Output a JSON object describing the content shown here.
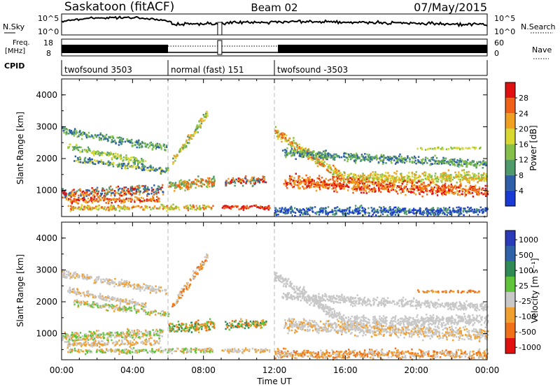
{
  "header": {
    "station": "Saskatoon (fitACF)",
    "beam": "Beam 02",
    "date": "07/May/2015"
  },
  "status_panels": {
    "nsky_label": "N.Sky",
    "nsky_ticks": [
      "10^5",
      "10^0"
    ],
    "nsearch_label": "N.Search",
    "nsearch_ticks": [
      "10^5",
      "10^0"
    ],
    "freq_label_line1": "Freq.",
    "freq_label_line2": "[MHz]",
    "freq_ticks": [
      "18",
      "8"
    ],
    "nave_label": "Nave",
    "nave_ticks": [
      "60",
      "0"
    ],
    "cpid_label": "CPID",
    "cpid_segments": [
      {
        "label": "twofsound 3503",
        "start_h": 0,
        "end_h": 6
      },
      {
        "label": "normal (fast) 151",
        "start_h": 6,
        "end_h": 12
      },
      {
        "label": "twofsound -3503",
        "start_h": 12,
        "end_h": 24
      }
    ]
  },
  "colors": {
    "power_scale": [
      "#1a3ad6",
      "#2f5fa8",
      "#4f9a6a",
      "#84c04a",
      "#d8d830",
      "#f0a020",
      "#f06018",
      "#e01010"
    ],
    "velocity_scale": [
      "#2a3ab8",
      "#2f62a8",
      "#2f8a55",
      "#5fc43c",
      "#c8c8c8",
      "#f0a030",
      "#f07018",
      "#e01010"
    ]
  },
  "chart_data": [
    {
      "type": "heatmap",
      "name": "power",
      "ylabel": "Slant Range [km]",
      "xlim": [
        0,
        24
      ],
      "ylim": [
        180,
        4500
      ],
      "yticks": [
        "1000",
        "2000",
        "3000",
        "4000"
      ],
      "colorbar_label": "Power [dB]",
      "colorbar_ticks": [
        "4",
        "8",
        "12",
        "16",
        "20",
        "24",
        "28"
      ],
      "scatter_bands": [
        {
          "t0": 0.0,
          "t1": 5.9,
          "r0": 2900,
          "r1": 2350,
          "w": 170,
          "c": [
            1,
            2,
            3
          ]
        },
        {
          "t0": 0.3,
          "t1": 4.7,
          "r0": 2400,
          "r1": 1900,
          "w": 150,
          "c": [
            2,
            3,
            4
          ]
        },
        {
          "t0": 0.6,
          "t1": 6.0,
          "r0": 2000,
          "r1": 1650,
          "w": 150,
          "c": [
            1,
            2,
            4
          ]
        },
        {
          "t0": 0.0,
          "t1": 5.7,
          "r0": 900,
          "r1": 1050,
          "w": 230,
          "c": [
            1,
            2,
            5,
            6,
            7
          ]
        },
        {
          "t0": 0.2,
          "t1": 5.5,
          "r0": 700,
          "r1": 750,
          "w": 130,
          "c": [
            5,
            6,
            7
          ]
        },
        {
          "t0": 0.3,
          "t1": 8.5,
          "r0": 480,
          "r1": 500,
          "w": 120,
          "c": [
            3,
            4,
            5,
            6
          ]
        },
        {
          "t0": 6.2,
          "t1": 8.2,
          "r0": 1900,
          "r1": 3450,
          "w": 220,
          "c": [
            2,
            3,
            4,
            5
          ]
        },
        {
          "t0": 6.0,
          "t1": 8.6,
          "r0": 1200,
          "r1": 1300,
          "w": 250,
          "c": [
            2,
            3,
            5,
            6
          ]
        },
        {
          "t0": 8.9,
          "t1": 11.7,
          "r0": 500,
          "r1": 500,
          "w": 110,
          "c": [
            6,
            7
          ]
        },
        {
          "t0": 9.2,
          "t1": 11.5,
          "r0": 1300,
          "r1": 1350,
          "w": 200,
          "c": [
            1,
            2,
            5,
            6,
            7
          ]
        },
        {
          "t0": 12.0,
          "t1": 16.0,
          "r0": 2850,
          "r1": 1400,
          "w": 260,
          "c": [
            3,
            4,
            5,
            6
          ]
        },
        {
          "t0": 16.0,
          "t1": 24.0,
          "r0": 1400,
          "r1": 1450,
          "w": 260,
          "c": [
            3,
            4,
            5
          ]
        },
        {
          "t0": 12.5,
          "t1": 24.0,
          "r0": 1300,
          "r1": 1000,
          "w": 300,
          "c": [
            5,
            6,
            7
          ]
        },
        {
          "t0": 12.4,
          "t1": 24.0,
          "r0": 2200,
          "r1": 1850,
          "w": 200,
          "c": [
            1,
            2,
            3
          ]
        },
        {
          "t0": 12.0,
          "t1": 24.0,
          "r0": 380,
          "r1": 380,
          "w": 200,
          "c": [
            0,
            1,
            2
          ]
        },
        {
          "t0": 20.0,
          "t1": 23.6,
          "r0": 2350,
          "r1": 2350,
          "w": 60,
          "c": [
            3,
            4
          ]
        }
      ]
    },
    {
      "type": "heatmap",
      "name": "velocity",
      "xlabel": "Time UT",
      "ylabel": "Slant Range [km]",
      "xlim": [
        0,
        24
      ],
      "ylim": [
        180,
        4500
      ],
      "xticks": [
        "00:00",
        "04:00",
        "08:00",
        "12:00",
        "16:00",
        "20:00",
        "00:00"
      ],
      "yticks": [
        "1000",
        "2000",
        "3000",
        "4000"
      ],
      "colorbar_label": "Velocity [m s⁻¹]",
      "colorbar_ticks": [
        "1000",
        "500",
        "100",
        "25",
        "-25",
        "-100",
        "-500",
        "-1000"
      ],
      "scatter_bands": [
        {
          "t0": 0.0,
          "t1": 5.9,
          "r0": 2900,
          "r1": 2350,
          "w": 170,
          "c": [
            4,
            4,
            5
          ]
        },
        {
          "t0": 0.3,
          "t1": 4.7,
          "r0": 2400,
          "r1": 1900,
          "w": 150,
          "c": [
            4,
            4,
            5
          ]
        },
        {
          "t0": 0.6,
          "t1": 6.0,
          "r0": 2000,
          "r1": 1650,
          "w": 150,
          "c": [
            4,
            3,
            5
          ]
        },
        {
          "t0": 0.0,
          "t1": 5.7,
          "r0": 900,
          "r1": 1050,
          "w": 230,
          "c": [
            4,
            5,
            3
          ]
        },
        {
          "t0": 0.2,
          "t1": 5.5,
          "r0": 700,
          "r1": 750,
          "w": 130,
          "c": [
            5,
            4
          ]
        },
        {
          "t0": 0.3,
          "t1": 8.5,
          "r0": 480,
          "r1": 500,
          "w": 120,
          "c": [
            4,
            5,
            3
          ]
        },
        {
          "t0": 6.2,
          "t1": 8.2,
          "r0": 1900,
          "r1": 3450,
          "w": 220,
          "c": [
            4,
            5,
            6
          ]
        },
        {
          "t0": 6.0,
          "t1": 8.6,
          "r0": 1200,
          "r1": 1300,
          "w": 250,
          "c": [
            3,
            2,
            6,
            5
          ]
        },
        {
          "t0": 8.9,
          "t1": 11.7,
          "r0": 500,
          "r1": 500,
          "w": 110,
          "c": [
            4,
            5
          ]
        },
        {
          "t0": 9.2,
          "t1": 11.5,
          "r0": 1300,
          "r1": 1350,
          "w": 200,
          "c": [
            3,
            2,
            5,
            6
          ]
        },
        {
          "t0": 12.0,
          "t1": 16.0,
          "r0": 2850,
          "r1": 1400,
          "w": 260,
          "c": [
            4
          ]
        },
        {
          "t0": 16.0,
          "t1": 24.0,
          "r0": 1400,
          "r1": 1450,
          "w": 260,
          "c": [
            4
          ]
        },
        {
          "t0": 12.5,
          "t1": 24.0,
          "r0": 1300,
          "r1": 1000,
          "w": 300,
          "c": [
            4,
            4,
            5
          ]
        },
        {
          "t0": 12.4,
          "t1": 24.0,
          "r0": 2200,
          "r1": 1850,
          "w": 200,
          "c": [
            4
          ]
        },
        {
          "t0": 12.0,
          "t1": 24.0,
          "r0": 380,
          "r1": 380,
          "w": 200,
          "c": [
            5,
            6,
            4
          ]
        },
        {
          "t0": 20.0,
          "t1": 23.6,
          "r0": 2350,
          "r1": 2350,
          "w": 60,
          "c": [
            5,
            6
          ]
        }
      ]
    }
  ]
}
